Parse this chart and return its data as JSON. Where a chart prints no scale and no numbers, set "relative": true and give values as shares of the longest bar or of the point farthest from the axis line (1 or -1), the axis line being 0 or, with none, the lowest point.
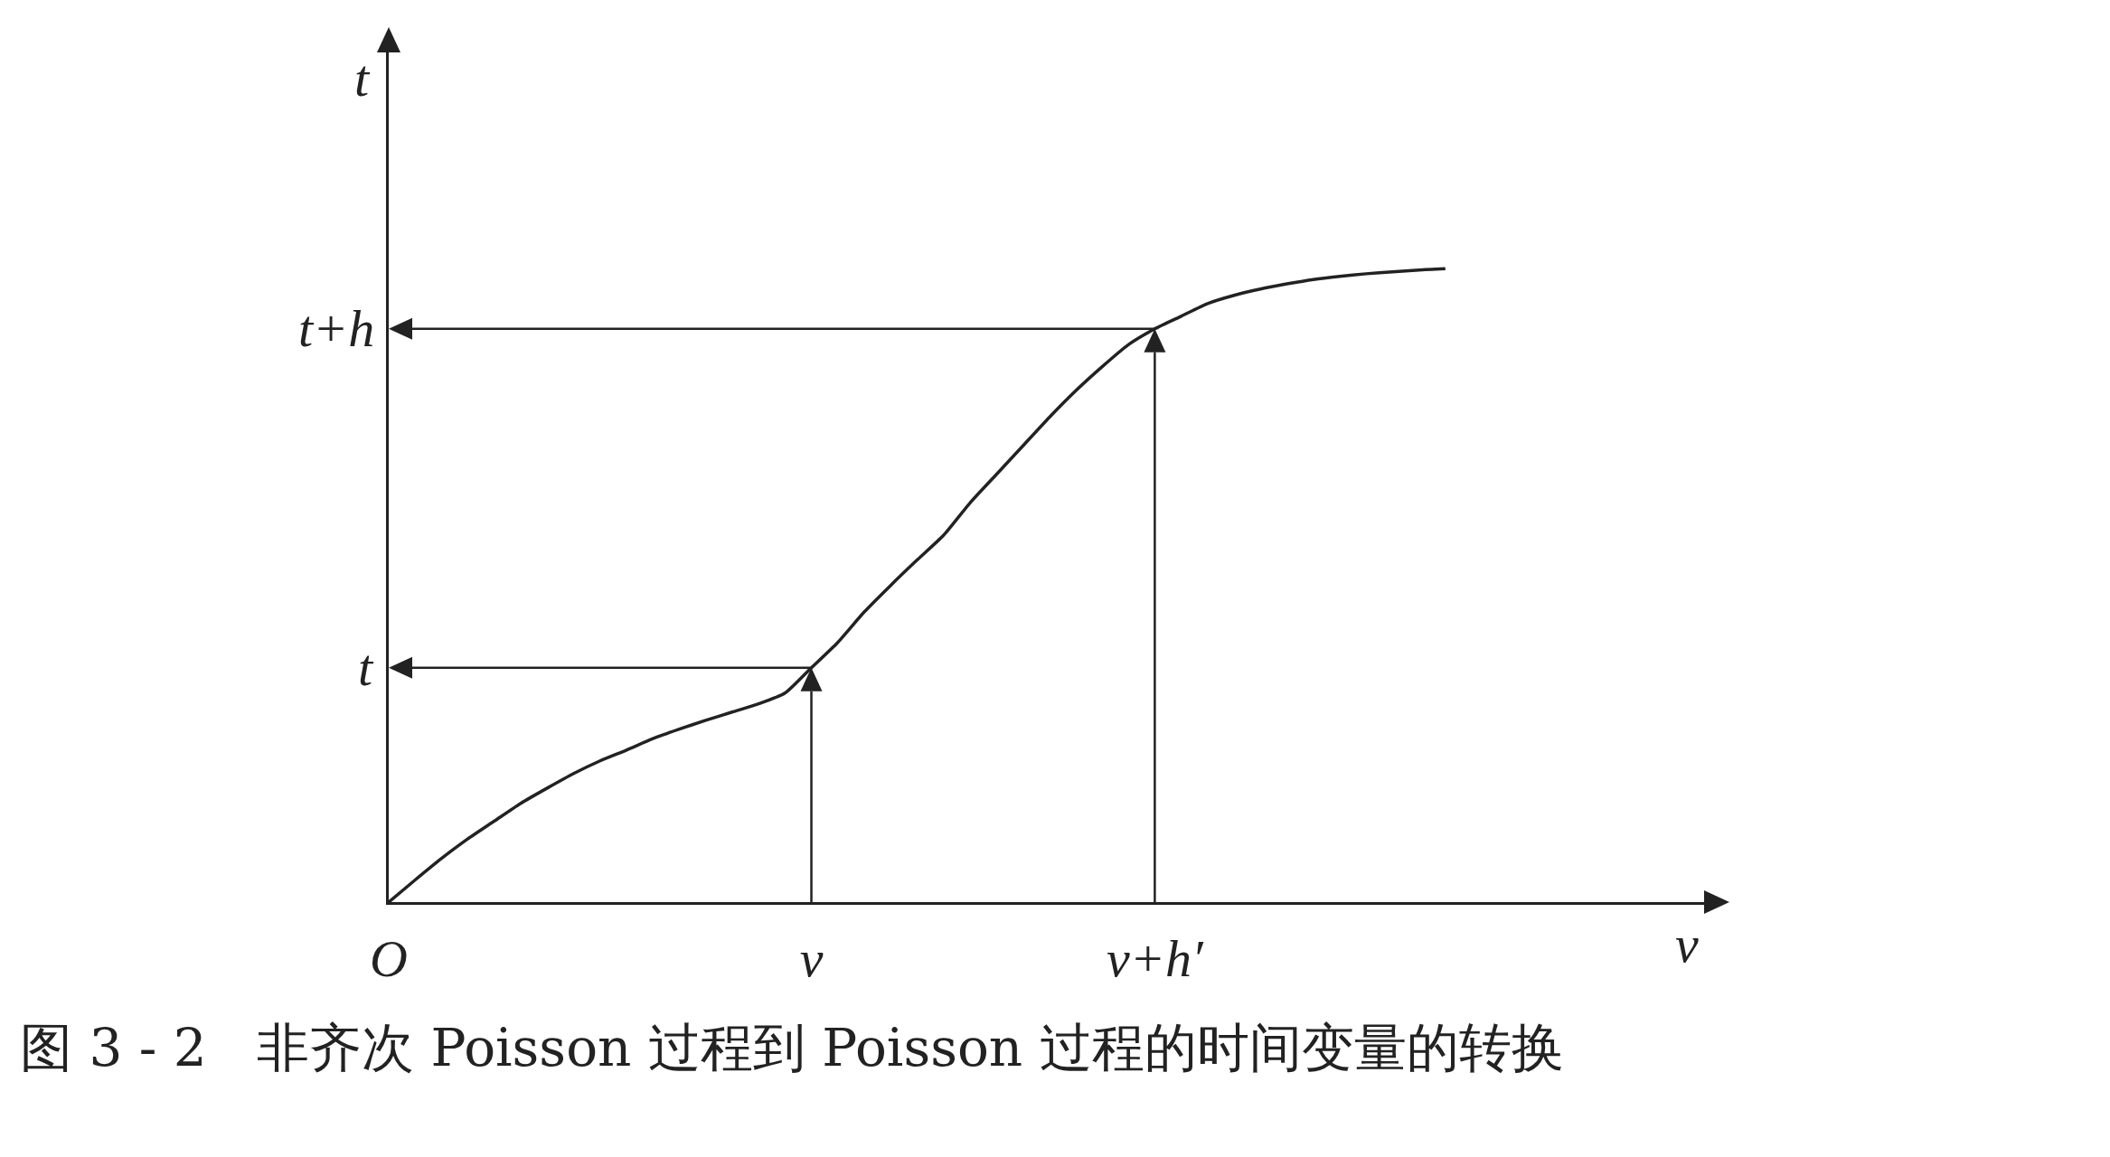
{
  "chart_data": {
    "type": "line",
    "relative": true,
    "xlabel": "v",
    "ylabel": "t",
    "categories": [
      "O",
      null,
      null,
      null,
      null,
      null,
      null,
      null,
      null,
      null,
      null,
      null,
      null,
      null,
      null,
      null,
      "v",
      null,
      null,
      null,
      null,
      null,
      null,
      null,
      null,
      null,
      null,
      null,
      null,
      "v+h′",
      null,
      null,
      null,
      null,
      null,
      null,
      null,
      null,
      null,
      null,
      null
    ],
    "series": [
      {
        "color": "#222222",
        "values": [
          0,
          0.035,
          0.069,
          0.1,
          0.128,
          0.156,
          0.18,
          0.203,
          0.223,
          0.24,
          0.258,
          0.273,
          0.287,
          0.3,
          0.313,
          0.33,
          0.37,
          0.41,
          0.458,
          0.5,
          0.54,
          0.579,
          0.63,
          0.675,
          0.72,
          0.765,
          0.807,
          0.845,
          0.88,
          0.905,
          0.925,
          0.945,
          0.958,
          0.968,
          0.976,
          0.983,
          0.988,
          0.992,
          0.995,
          0.998,
          1
        ]
      }
    ],
    "marker": "none",
    "line_style": "solid",
    "grid": false,
    "annotations": [
      {
        "text": "t",
        "x": "v",
        "y": 0.37
      },
      {
        "text": "t+h",
        "x": "v+h′",
        "y": 0.905
      },
      "图 3 - 2   非齐次 Poisson 过程到 Poisson 过程的时间变量的转换"
    ]
  }
}
